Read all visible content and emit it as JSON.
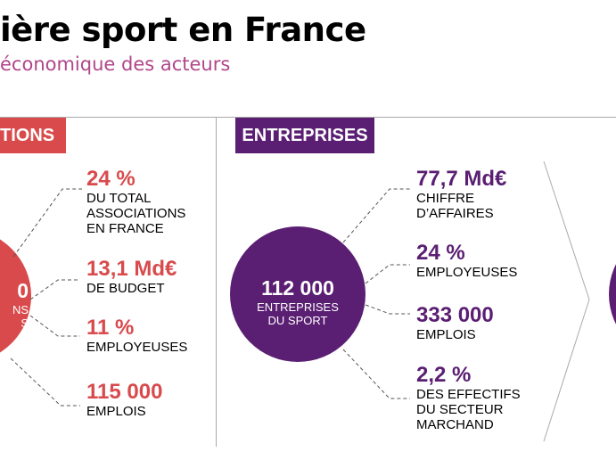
{
  "header": {
    "title": "ière sport en France",
    "subtitle": "économique des acteurs"
  },
  "associations": {
    "tag": "TIONS",
    "circle": {
      "value": "0",
      "line1": "NS",
      "line2": "S"
    },
    "items": [
      {
        "value": "24 %",
        "label": [
          "DU TOTAL",
          "ASSOCIATIONS",
          "EN FRANCE"
        ]
      },
      {
        "value": "13,1 Md€",
        "label": [
          "DE BUDGET"
        ]
      },
      {
        "value": "11 %",
        "label": [
          "EMPLOYEUSES"
        ]
      },
      {
        "value": "115 000",
        "label": [
          "EMPLOIS"
        ]
      }
    ]
  },
  "entreprises": {
    "tag": "ENTREPRISES",
    "circle": {
      "value": "112 000",
      "line1": "ENTREPRISES",
      "line2": "DU SPORT"
    },
    "items": [
      {
        "value": "77,7 Md€",
        "label": [
          "CHIFFRE",
          "D’AFFAIRES"
        ]
      },
      {
        "value": "24 %",
        "label": [
          "EMPLOYEUSES"
        ]
      },
      {
        "value": "333 000",
        "label": [
          "EMPLOIS"
        ]
      },
      {
        "value": "2,2 %",
        "label": [
          "DES EFFECTIFS",
          "DU SECTEUR",
          "MARCHAND"
        ]
      }
    ]
  },
  "colors": {
    "red": "#d94a4c",
    "purple": "#5a1e72",
    "subtitle": "#b0468a"
  }
}
